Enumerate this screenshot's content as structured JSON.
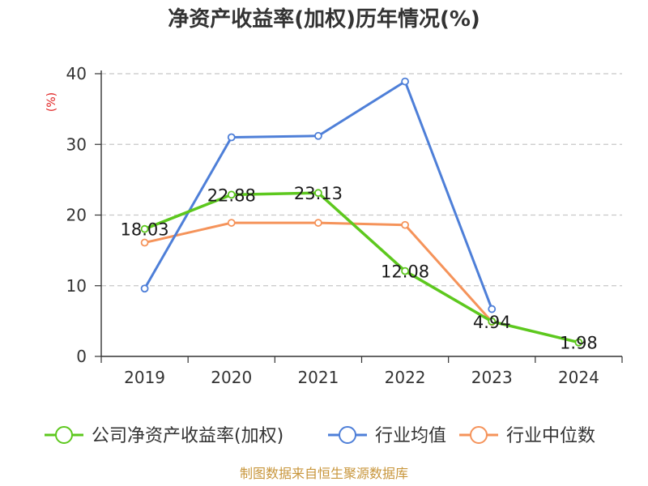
{
  "chart_data": {
    "type": "line",
    "title": "净资产收益率(加权)历年情况(%)",
    "ylabel": "(%)",
    "xlabel": "",
    "categories": [
      "2019",
      "2020",
      "2021",
      "2022",
      "2023",
      "2024"
    ],
    "ylim": [
      0,
      40
    ],
    "yticks": [
      0,
      10,
      20,
      30,
      40
    ],
    "grid": true,
    "legend_position": "bottom",
    "series": [
      {
        "name": "公司净资产收益率(加权)",
        "color": "#5dc81e",
        "values": [
          18.03,
          22.88,
          23.13,
          12.08,
          4.94,
          1.98
        ],
        "labels": [
          "18.03",
          "22.88",
          "23.13",
          "12.08",
          "4.94",
          "1.98"
        ]
      },
      {
        "name": "行业均值",
        "color": "#4e7fd8",
        "values": [
          9.6,
          31.0,
          31.2,
          38.9,
          6.7,
          null
        ]
      },
      {
        "name": "行业中位数",
        "color": "#f5935a",
        "values": [
          16.1,
          18.9,
          18.9,
          18.6,
          4.9,
          null
        ]
      }
    ],
    "source": "制图数据来自恒生聚源数据库"
  }
}
